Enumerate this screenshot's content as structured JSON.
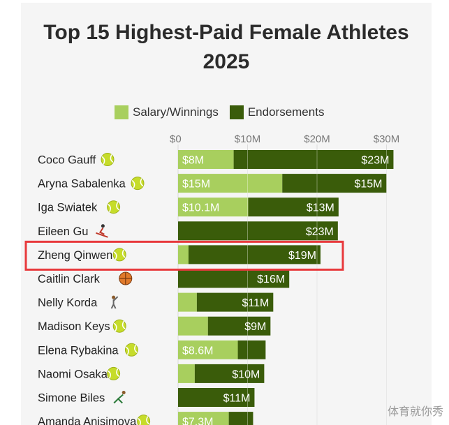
{
  "chart_data": {
    "type": "bar",
    "stacked": true,
    "orientation": "horizontal",
    "title": "Top 15 Highest-Paid Female Athletes 2025",
    "legend": {
      "position": "top",
      "entries": [
        "Salary/Winnings",
        "Endorsements"
      ]
    },
    "x_ticks": [
      "$0",
      "$10M",
      "$20M",
      "$30M"
    ],
    "xlim": [
      0,
      34
    ],
    "grid": true,
    "categories": [
      {
        "name": "Coco Gauff",
        "icon": "tennis-ball-icon"
      },
      {
        "name": "Aryna Sabalenka",
        "icon": "tennis-ball-icon"
      },
      {
        "name": "Iga Swiatek",
        "icon": "tennis-ball-icon"
      },
      {
        "name": "Eileen Gu",
        "icon": "skier-icon"
      },
      {
        "name": "Zheng Qinwen",
        "icon": "tennis-ball-icon"
      },
      {
        "name": "Caitlin Clark",
        "icon": "basketball-icon"
      },
      {
        "name": "Nelly Korda",
        "icon": "golfer-icon"
      },
      {
        "name": "Madison Keys",
        "icon": "tennis-ball-icon"
      },
      {
        "name": "Elena Rybakina",
        "icon": "tennis-ball-icon"
      },
      {
        "name": "Naomi Osaka",
        "icon": "tennis-ball-icon"
      },
      {
        "name": "Simone Biles",
        "icon": "gymnast-icon"
      },
      {
        "name": "Amanda Anisimova",
        "icon": "tennis-ball-icon"
      }
    ],
    "series": [
      {
        "name": "Salary/Winnings",
        "color": "#a8cf5e",
        "values": [
          8,
          15,
          10.1,
          0,
          1.5,
          0,
          2.7,
          4.3,
          8.6,
          2.4,
          0,
          7.3
        ],
        "labels": [
          "$8M",
          "$15M",
          "$10.1M",
          "",
          "",
          "",
          "",
          "",
          "$8.6M",
          "",
          "",
          "$7.3M"
        ]
      },
      {
        "name": "Endorsements",
        "color": "#3a5c0a",
        "values": [
          23,
          15,
          13,
          23,
          19,
          16,
          11,
          9,
          4,
          10,
          11,
          3.5
        ],
        "labels": [
          "$23M",
          "$15M",
          "$13M",
          "$23M",
          "$19M",
          "$16M",
          "$11M",
          "$9M",
          "",
          "$10M",
          "$11M",
          ""
        ]
      }
    ],
    "highlighted_row": "Zheng Qinwen",
    "highlight_color": "#e8393c"
  },
  "watermark": "体育就你秀"
}
